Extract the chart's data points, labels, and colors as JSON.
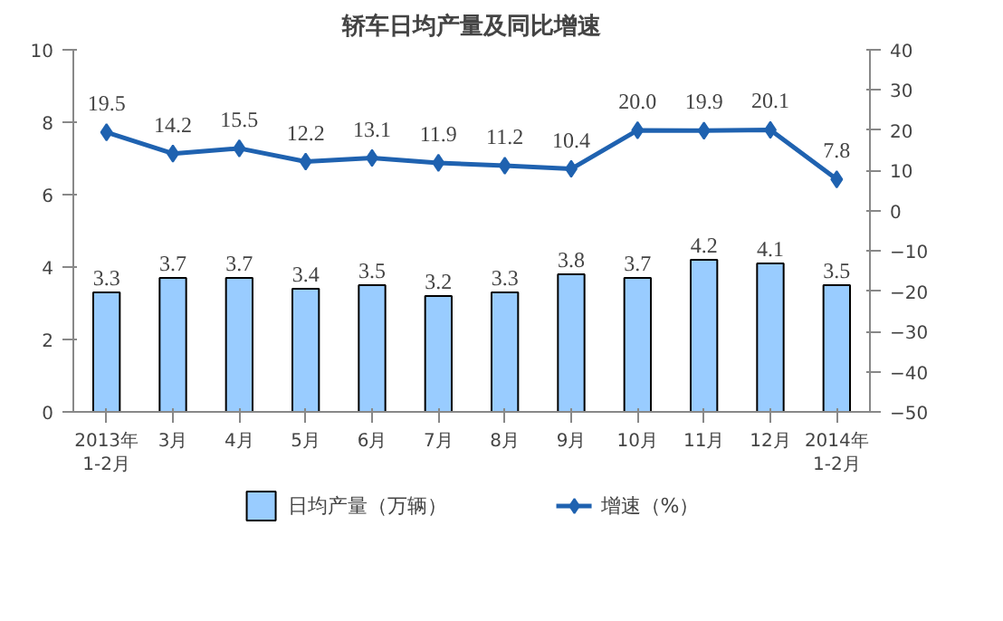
{
  "chart_data": {
    "type": "bar",
    "title": "轿车日均产量及同比增速",
    "categories": [
      "2013年\n1-2月",
      "3月",
      "4月",
      "5月",
      "6月",
      "7月",
      "8月",
      "9月",
      "10月",
      "11月",
      "12月",
      "2014年\n1-2月"
    ],
    "series": [
      {
        "name": "日均产量（万辆）",
        "color": "#99ccff",
        "values": [
          3.3,
          3.7,
          3.7,
          3.4,
          3.5,
          3.2,
          3.3,
          3.8,
          3.7,
          4.2,
          4.1,
          3.5
        ],
        "value_labels": [
          "3.3",
          "3.7",
          "3.7",
          "3.4",
          "3.5",
          "3.2",
          "3.3",
          "3.8",
          "3.7",
          "4.2",
          "4.1",
          "3.5"
        ]
      },
      {
        "name": "增速（%）",
        "type": "line",
        "axis": "y2",
        "color": "#1f62b0",
        "marker": "diamond",
        "values": [
          19.5,
          14.2,
          15.5,
          12.2,
          13.1,
          11.9,
          11.2,
          10.4,
          20.0,
          19.9,
          20.1,
          7.8
        ],
        "value_labels": [
          "19.5",
          "14.2",
          "15.5",
          "12.2",
          "13.1",
          "11.9",
          "11.2",
          "10.4",
          "20.0",
          "19.9",
          "20.1",
          "7.8"
        ]
      }
    ],
    "ylim": [
      0,
      10
    ],
    "yticks": [
      0,
      2,
      4,
      6,
      8,
      10
    ],
    "y2lim": [
      -50,
      40
    ],
    "y2ticks": [
      -50,
      -40,
      -30,
      -20,
      -10,
      0,
      10,
      20,
      30,
      40
    ],
    "legend": "bottom"
  }
}
